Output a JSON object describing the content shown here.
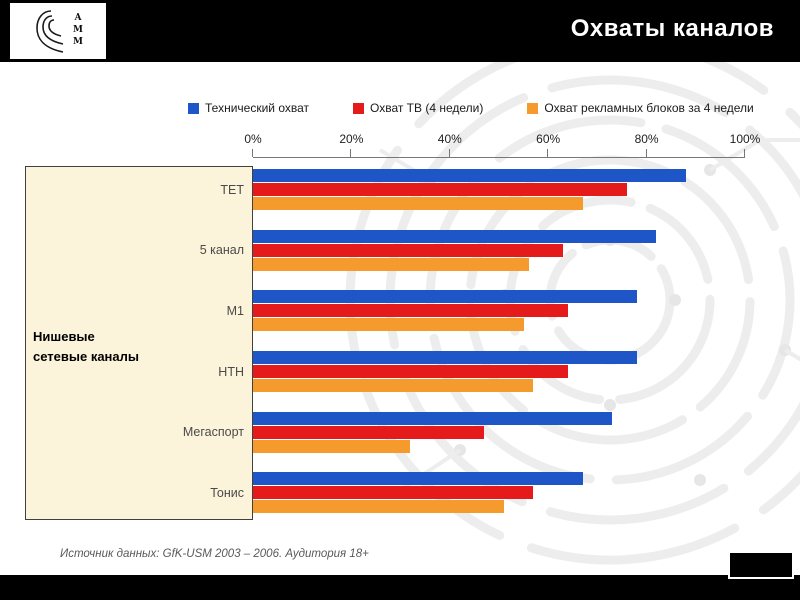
{
  "header": {
    "title": "Охваты каналов",
    "logo": {
      "letters": [
        "А",
        "М",
        "М"
      ]
    }
  },
  "chart_data": {
    "type": "bar",
    "orientation": "horizontal",
    "categories": [
      "ТЕТ",
      "5 канал",
      "М1",
      "НТН",
      "Мегаспорт",
      "Тонис"
    ],
    "series": [
      {
        "name": "Технический охват",
        "color": "#1E56C8",
        "values": [
          88,
          82,
          78,
          78,
          73,
          67
        ]
      },
      {
        "name": "Охват ТВ (4 недели)",
        "color": "#E51A1A",
        "values": [
          76,
          63,
          64,
          64,
          47,
          57
        ]
      },
      {
        "name": "Охват рекламных блоков за 4 недели",
        "color": "#F59B2D",
        "values": [
          67,
          56,
          55,
          57,
          32,
          51
        ]
      }
    ],
    "x_ticks": [
      "0%",
      "20%",
      "40%",
      "60%",
      "80%",
      "100%"
    ],
    "xlim": [
      0,
      100
    ],
    "legend_position": "top",
    "grid": false
  },
  "annotation": {
    "lines": [
      "Нишевые",
      "сетевые каналы"
    ]
  },
  "footer": {
    "source": "Источник данных: GfK-USM 2003 – 2006. Аудитория 18+"
  }
}
